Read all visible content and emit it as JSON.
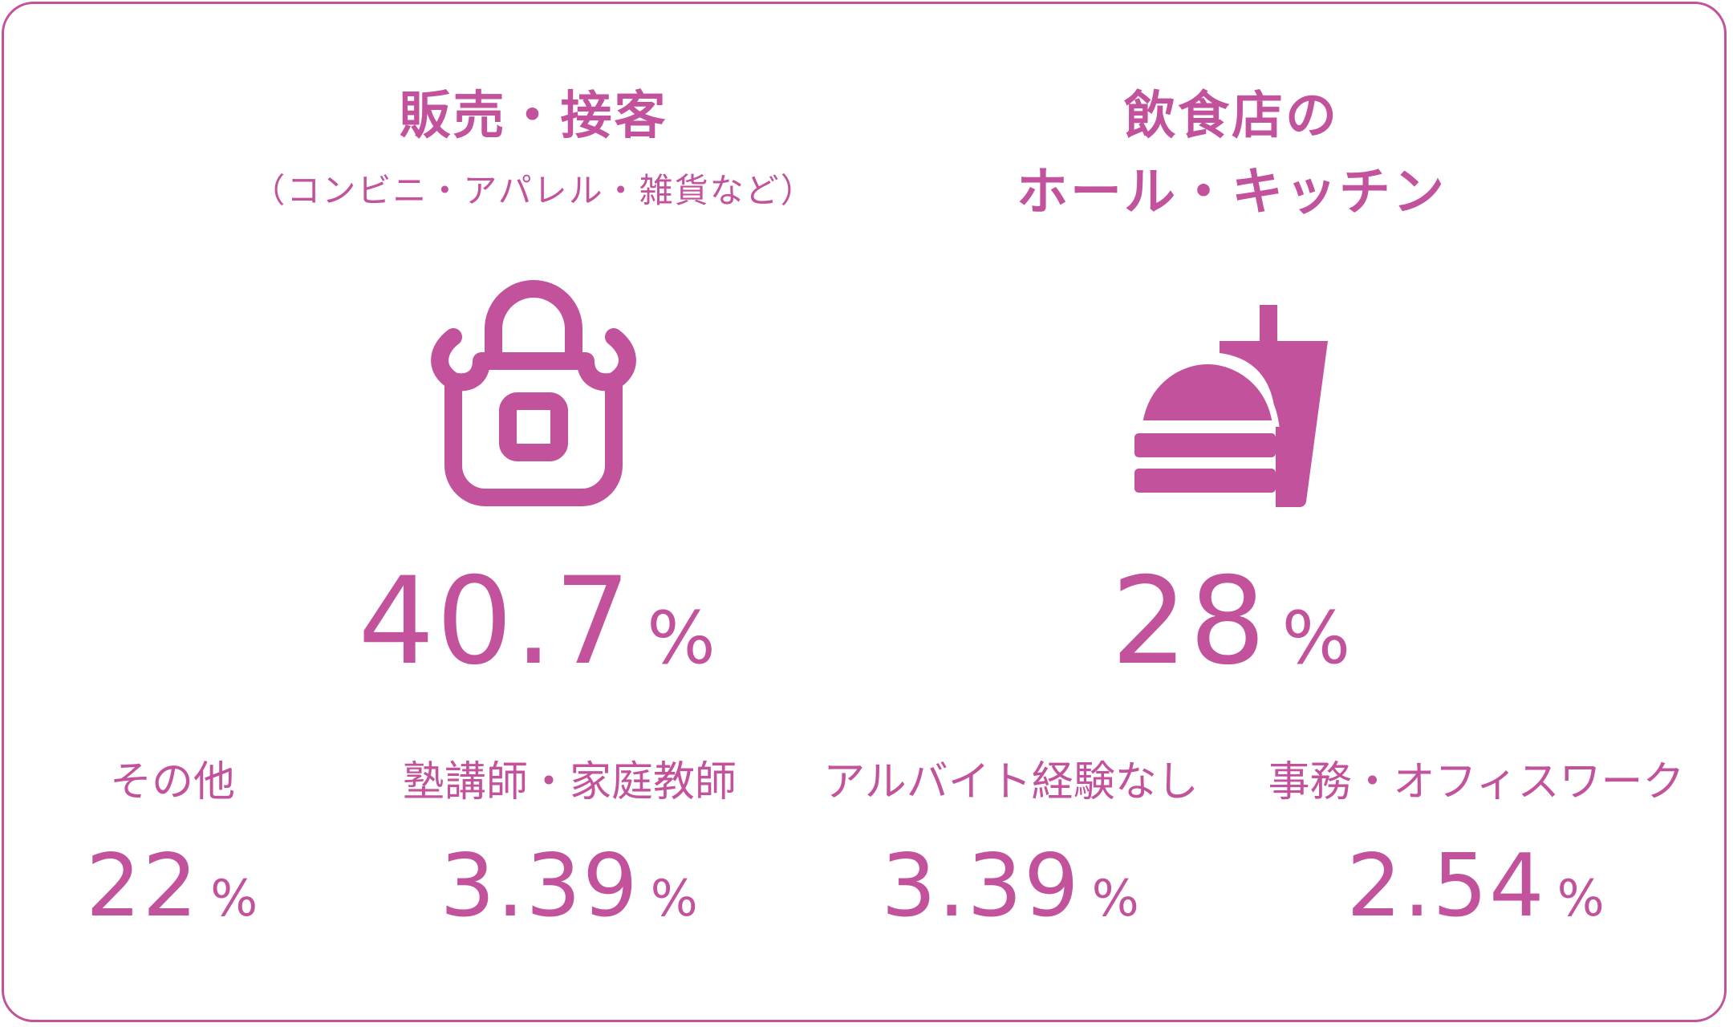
{
  "accent_color": "#c2529c",
  "main": [
    {
      "title": "販売・接客",
      "subtitle": "（コンビニ・アパレル・雑貨など）",
      "icon": "apron-icon",
      "value": "40.7",
      "unit": "%"
    },
    {
      "title_line1": "飲食店の",
      "title_line2": "ホール・キッチン",
      "icon": "burger-drink-icon",
      "value": "28",
      "unit": "%"
    }
  ],
  "others": [
    {
      "label": "その他",
      "value": "22",
      "unit": "%"
    },
    {
      "label": "塾講師・家庭教師",
      "value": "3.39",
      "unit": "%"
    },
    {
      "label": "アルバイト経験なし",
      "value": "3.39",
      "unit": "%"
    },
    {
      "label": "事務・オフィスワーク",
      "value": "2.54",
      "unit": "%"
    }
  ]
}
